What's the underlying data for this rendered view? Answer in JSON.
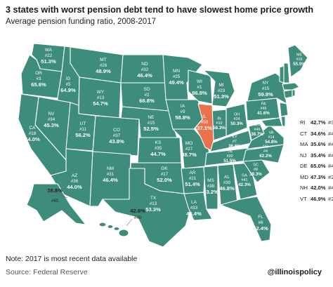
{
  "title": "3 states with worst pension debt tend to have slowest home price growth",
  "subtitle": "Average pension funding ratio, 2008-2017",
  "note": "Note: 2017 is most recent data available",
  "source": "Source: Federal Reserve",
  "handle": "@illinoispolicy",
  "colors": {
    "base": "#3d8c7c",
    "highlight": "#e8734a",
    "border": "#ffffff"
  },
  "states": {
    "WA": {
      "abbr": "WA",
      "rank": "#22",
      "pct": "51.3%"
    },
    "OR": {
      "abbr": "OR",
      "rank": "#3",
      "pct": "65.6%"
    },
    "ID": {
      "abbr": "ID",
      "rank": "#5",
      "pct": "64.9%"
    },
    "MT": {
      "abbr": "MT",
      "rank": "#26",
      "pct": "48.9%"
    },
    "WY": {
      "abbr": "WY",
      "rank": "#13",
      "pct": "54.7%"
    },
    "ND": {
      "abbr": "ND",
      "rank": "#32",
      "pct": "46.4%"
    },
    "SD": {
      "abbr": "SD",
      "rank": "#2",
      "pct": "66.8%"
    },
    "NE": {
      "abbr": "NE",
      "rank": "#15",
      "pct": "52.5%"
    },
    "MN": {
      "abbr": "MN",
      "rank": "#25",
      "pct": "49.4%"
    },
    "WI": {
      "abbr": "WI",
      "rank": "#1",
      "pct": "86.8%"
    },
    "MI": {
      "abbr": "MI",
      "rank": "#23",
      "pct": "51.3%"
    },
    "IA": {
      "abbr": "IA",
      "rank": "#9",
      "pct": "58.8%"
    },
    "IL": {
      "abbr": "IL",
      "rank": "#50",
      "pct": "37.1%"
    },
    "IN": {
      "abbr": "IN",
      "rank": "#10",
      "pct": "58.3%"
    },
    "OH": {
      "abbr": "OH",
      "rank": "#24",
      "pct": "50.3%"
    },
    "NV": {
      "abbr": "NV",
      "rank": "#34",
      "pct": "45.3%"
    },
    "UT": {
      "abbr": "UT",
      "rank": "#11",
      "pct": "56.2%"
    },
    "CO": {
      "abbr": "CO",
      "rank": "#37",
      "pct": "43.8%"
    },
    "KS": {
      "abbr": "KS",
      "rank": "#35",
      "pct": "44.7%"
    },
    "MO": {
      "abbr": "MO",
      "rank": "#27",
      "pct": "48.7%"
    },
    "CA": {
      "abbr": "CA",
      "rank": "#18",
      "pct": "54.0%"
    },
    "AZ": {
      "abbr": "AZ",
      "rank": "#36",
      "pct": "44.0%"
    },
    "NM": {
      "abbr": "NM",
      "rank": "#31",
      "pct": "46.4%"
    },
    "OK": {
      "abbr": "OK",
      "rank": "#17",
      "pct": "52.0%"
    },
    "AR": {
      "abbr": "AR",
      "rank": "#21",
      "pct": "51.4%"
    },
    "TX": {
      "abbr": "TX",
      "rank": "#13",
      "pct": "53.3%"
    },
    "LA": {
      "abbr": "LA",
      "rank": "#33",
      "pct": "45.4%"
    },
    "MS": {
      "abbr": "MS",
      "rank": "#38",
      "pct": "43.2%"
    },
    "AL": {
      "abbr": "AL",
      "rank": "#30",
      "pct": "46.8%"
    },
    "GA": {
      "abbr": "GA",
      "rank": "#41",
      "pct": "42.3%"
    },
    "FL": {
      "abbr": "FL",
      "rank": "#6",
      "pct": "62.4%"
    },
    "TN": {
      "abbr": "TN",
      "rank": "#20",
      "pct": "51.5%"
    },
    "KY": {
      "abbr": "KY",
      "rank": "#7",
      "pct": "36.6%"
    },
    "SC": {
      "abbr": "SC",
      "rank": "#8",
      "pct": "39.3%"
    },
    "NC": {
      "abbr": "NC",
      "rank": "#4",
      "pct": "62.2%"
    },
    "VA": {
      "abbr": "VA",
      "rank": "#14",
      "pct": "54.8%"
    },
    "WV": {
      "abbr": "WV",
      "rank": "#46",
      "pct": "38.7%"
    },
    "PA": {
      "abbr": "PA",
      "rank": "#45",
      "pct": "41.6%"
    },
    "NY": {
      "abbr": "NY",
      "rank": "#15",
      "pct": "59.8%"
    },
    "ME": {
      "abbr": "ME",
      "rank": "#16",
      "pct": "55.5%"
    },
    "AK": {
      "abbr": "AK",
      "rank": "#45",
      "pct": "38.8%"
    },
    "HI": {
      "abbr": "HI",
      "rank": "#40",
      "pct": "42.6%"
    }
  },
  "side_list": [
    {
      "abbr": "RI",
      "pct": "42.7%",
      "rank": "#39"
    },
    {
      "abbr": "CT",
      "pct": "34.6%",
      "rank": "#48"
    },
    {
      "abbr": "MA",
      "pct": "35.6%",
      "rank": "#47"
    },
    {
      "abbr": "NJ",
      "pct": "35.4%",
      "rank": "#49"
    },
    {
      "abbr": "DE",
      "pct": "65.0%",
      "rank": "#4"
    },
    {
      "abbr": "MD",
      "pct": "47.3%",
      "rank": "#28"
    },
    {
      "abbr": "NH",
      "pct": "42.0%",
      "rank": "#43"
    },
    {
      "abbr": "VT",
      "pct": "46.9%",
      "rank": "#29"
    }
  ]
}
